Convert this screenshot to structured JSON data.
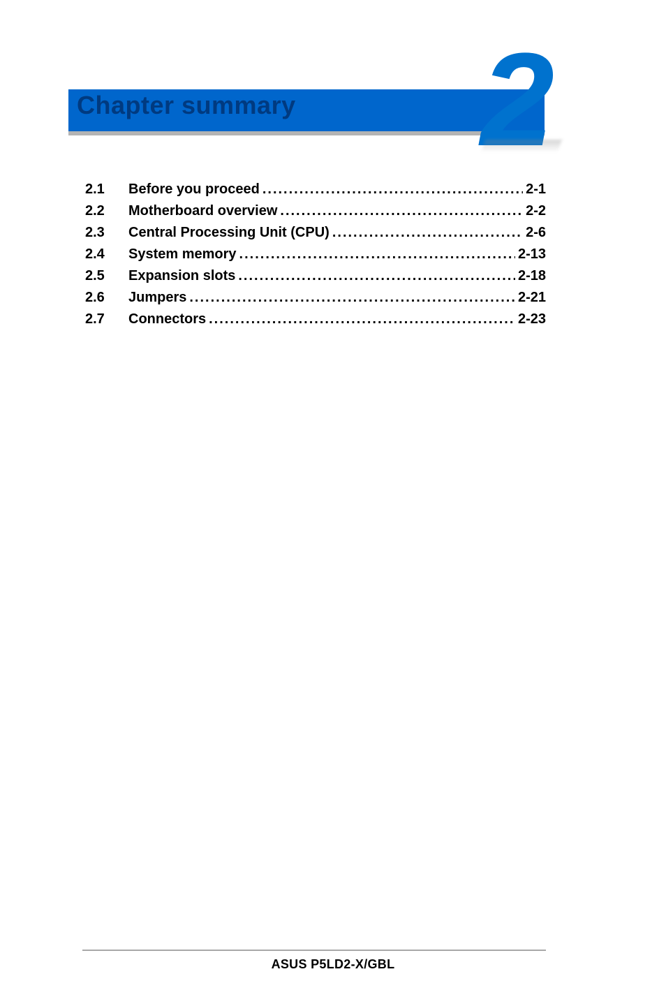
{
  "banner": {
    "title": "Chapter summary",
    "chapter_number": "2",
    "title_color": "#003a80",
    "number_color": "#0072ce",
    "bar_color": "#0066cc",
    "underline_color": "#b4b4b4",
    "title_fontsize": 36,
    "number_fontsize": 190
  },
  "toc": {
    "font_weight": 700,
    "fontsize": 20,
    "text_color": "#000000",
    "entries": [
      {
        "num": "2.1",
        "label": "Before you proceed",
        "page": "2-1"
      },
      {
        "num": "2.2",
        "label": "Motherboard overview",
        "page": "2-2"
      },
      {
        "num": "2.3",
        "label": "Central Processing Unit (CPU)",
        "page": "2-6"
      },
      {
        "num": "2.4",
        "label": "System memory",
        "page": "2-13"
      },
      {
        "num": "2.5",
        "label": "Expansion slots",
        "page": "2-18"
      },
      {
        "num": "2.6",
        "label": "Jumpers",
        "page": "2-21"
      },
      {
        "num": "2.7",
        "label": "Connectors",
        "page": "2-23"
      }
    ]
  },
  "footer": {
    "text": "ASUS P5LD2-X/GBL",
    "line_color": "#a8a8a8",
    "fontsize": 18
  },
  "page_background": "#ffffff"
}
